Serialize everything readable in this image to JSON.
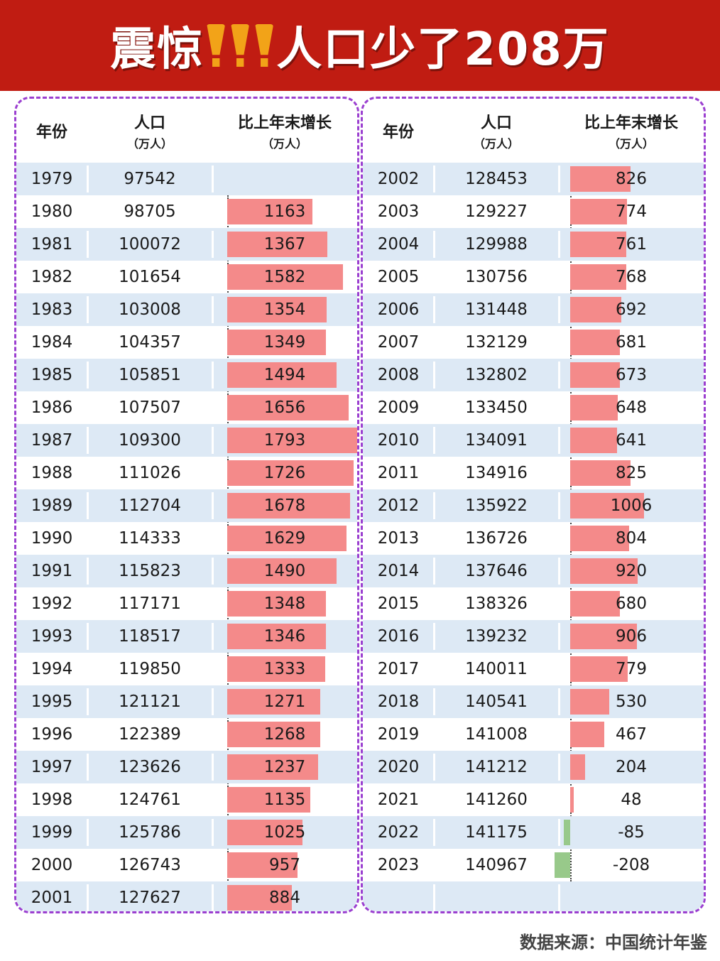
{
  "banner": {
    "title_part1": "震惊",
    "title_part2": "人口少了208万"
  },
  "headers": {
    "year": "年份",
    "population": "人口",
    "population_unit": "（万人）",
    "growth": "比上年末增长",
    "growth_unit": "（万人）"
  },
  "colors": {
    "banner": "#c01c12",
    "positive_bar": "#f48a8a",
    "negative_bar": "#98c98a",
    "stripe": "#dde9f5",
    "border": "#9b3fd0"
  },
  "chart_data": {
    "type": "table",
    "columns": [
      "年份",
      "人口（万人）",
      "比上年末增长（万人）"
    ],
    "rows": [
      [
        "1979",
        97542,
        null
      ],
      [
        "1980",
        98705,
        1163
      ],
      [
        "1981",
        100072,
        1367
      ],
      [
        "1982",
        101654,
        1582
      ],
      [
        "1983",
        103008,
        1354
      ],
      [
        "1984",
        104357,
        1349
      ],
      [
        "1985",
        105851,
        1494
      ],
      [
        "1986",
        107507,
        1656
      ],
      [
        "1987",
        109300,
        1793
      ],
      [
        "1988",
        111026,
        1726
      ],
      [
        "1989",
        112704,
        1678
      ],
      [
        "1990",
        114333,
        1629
      ],
      [
        "1991",
        115823,
        1490
      ],
      [
        "1992",
        117171,
        1348
      ],
      [
        "1993",
        118517,
        1346
      ],
      [
        "1994",
        119850,
        1333
      ],
      [
        "1995",
        121121,
        1271
      ],
      [
        "1996",
        122389,
        1268
      ],
      [
        "1997",
        123626,
        1237
      ],
      [
        "1998",
        124761,
        1135
      ],
      [
        "1999",
        125786,
        1025
      ],
      [
        "2000",
        126743,
        957
      ],
      [
        "2001",
        127627,
        884
      ],
      [
        "2002",
        128453,
        826
      ],
      [
        "2003",
        129227,
        774
      ],
      [
        "2004",
        129988,
        761
      ],
      [
        "2005",
        130756,
        768
      ],
      [
        "2006",
        131448,
        692
      ],
      [
        "2007",
        132129,
        681
      ],
      [
        "2008",
        132802,
        673
      ],
      [
        "2009",
        133450,
        648
      ],
      [
        "2010",
        134091,
        641
      ],
      [
        "2011",
        134916,
        825
      ],
      [
        "2012",
        135922,
        1006
      ],
      [
        "2013",
        136726,
        804
      ],
      [
        "2014",
        137646,
        920
      ],
      [
        "2015",
        138326,
        680
      ],
      [
        "2016",
        139232,
        906
      ],
      [
        "2017",
        140011,
        779
      ],
      [
        "2018",
        140541,
        530
      ],
      [
        "2019",
        141008,
        467
      ],
      [
        "2020",
        141212,
        204
      ],
      [
        "2021",
        141260,
        48
      ],
      [
        "2022",
        141175,
        -85
      ],
      [
        "2023",
        140967,
        -208
      ]
    ]
  },
  "footer": {
    "source": "数据来源：中国统计年鉴"
  }
}
